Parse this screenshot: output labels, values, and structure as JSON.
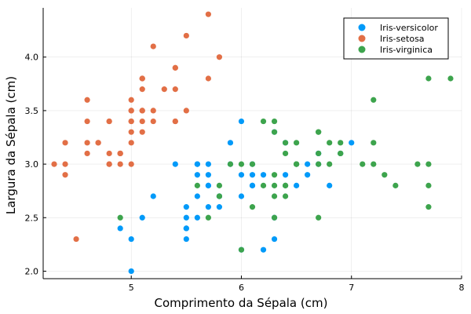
{
  "chart_data": {
    "type": "scatter",
    "xlabel": "Comprimento da Sépala (cm)",
    "ylabel": "Largura da Sépala (cm)",
    "xlim": [
      4.2,
      8.0
    ],
    "ylim": [
      1.93,
      4.46
    ],
    "xticks": [
      5,
      6,
      7,
      8
    ],
    "yticks": [
      2.0,
      2.5,
      3.0,
      3.5,
      4.0
    ],
    "xtick_labels": [
      "5",
      "6",
      "7",
      "8"
    ],
    "ytick_labels": [
      "2.0",
      "2.5",
      "3.0",
      "3.5",
      "4.0"
    ],
    "grid": true,
    "legend_position": "top-right",
    "series": [
      {
        "name": "Iris-versicolor",
        "color": "#009af9",
        "points": [
          [
            7.0,
            3.2
          ],
          [
            6.4,
            3.2
          ],
          [
            6.9,
            3.1
          ],
          [
            5.5,
            2.3
          ],
          [
            6.5,
            2.8
          ],
          [
            5.7,
            2.8
          ],
          [
            6.3,
            3.3
          ],
          [
            4.9,
            2.4
          ],
          [
            6.6,
            2.9
          ],
          [
            5.2,
            2.7
          ],
          [
            5.0,
            2.0
          ],
          [
            5.9,
            3.0
          ],
          [
            6.0,
            2.2
          ],
          [
            6.1,
            2.9
          ],
          [
            5.6,
            2.9
          ],
          [
            6.7,
            3.1
          ],
          [
            5.6,
            3.0
          ],
          [
            5.8,
            2.7
          ],
          [
            6.2,
            2.2
          ],
          [
            5.6,
            2.5
          ],
          [
            5.9,
            3.2
          ],
          [
            6.1,
            2.8
          ],
          [
            6.3,
            2.5
          ],
          [
            6.1,
            2.8
          ],
          [
            6.4,
            2.9
          ],
          [
            6.6,
            3.0
          ],
          [
            6.8,
            2.8
          ],
          [
            6.7,
            3.0
          ],
          [
            6.0,
            2.9
          ],
          [
            5.7,
            2.6
          ],
          [
            5.5,
            2.4
          ],
          [
            5.5,
            2.4
          ],
          [
            5.8,
            2.7
          ],
          [
            6.0,
            2.7
          ],
          [
            5.4,
            3.0
          ],
          [
            6.0,
            3.4
          ],
          [
            6.7,
            3.1
          ],
          [
            6.3,
            2.3
          ],
          [
            5.6,
            3.0
          ],
          [
            5.5,
            2.5
          ],
          [
            5.5,
            2.6
          ],
          [
            6.1,
            3.0
          ],
          [
            5.8,
            2.6
          ],
          [
            5.0,
            2.3
          ],
          [
            5.6,
            2.7
          ],
          [
            5.7,
            3.0
          ],
          [
            5.7,
            2.9
          ],
          [
            6.2,
            2.9
          ],
          [
            5.1,
            2.5
          ],
          [
            5.7,
            2.8
          ]
        ]
      },
      {
        "name": "Iris-setosa",
        "color": "#e26f46",
        "points": [
          [
            5.1,
            3.5
          ],
          [
            4.9,
            3.0
          ],
          [
            4.7,
            3.2
          ],
          [
            4.6,
            3.1
          ],
          [
            5.0,
            3.6
          ],
          [
            5.4,
            3.9
          ],
          [
            4.6,
            3.4
          ],
          [
            5.0,
            3.4
          ],
          [
            4.4,
            2.9
          ],
          [
            4.9,
            3.1
          ],
          [
            5.4,
            3.7
          ],
          [
            4.8,
            3.4
          ],
          [
            4.8,
            3.0
          ],
          [
            4.3,
            3.0
          ],
          [
            5.8,
            4.0
          ],
          [
            5.7,
            4.4
          ],
          [
            5.4,
            3.9
          ],
          [
            5.1,
            3.5
          ],
          [
            5.7,
            3.8
          ],
          [
            5.1,
            3.8
          ],
          [
            5.4,
            3.4
          ],
          [
            5.1,
            3.7
          ],
          [
            4.6,
            3.6
          ],
          [
            5.1,
            3.3
          ],
          [
            4.8,
            3.4
          ],
          [
            5.0,
            3.0
          ],
          [
            5.0,
            3.4
          ],
          [
            5.2,
            3.5
          ],
          [
            5.2,
            3.4
          ],
          [
            4.7,
            3.2
          ],
          [
            4.8,
            3.1
          ],
          [
            5.4,
            3.4
          ],
          [
            5.2,
            4.1
          ],
          [
            5.5,
            4.2
          ],
          [
            4.9,
            3.1
          ],
          [
            5.0,
            3.2
          ],
          [
            5.5,
            3.5
          ],
          [
            4.9,
            3.1
          ],
          [
            4.4,
            3.0
          ],
          [
            5.1,
            3.4
          ],
          [
            5.0,
            3.5
          ],
          [
            4.5,
            2.3
          ],
          [
            4.4,
            3.2
          ],
          [
            5.0,
            3.5
          ],
          [
            5.1,
            3.8
          ],
          [
            4.8,
            3.0
          ],
          [
            5.1,
            3.8
          ],
          [
            4.6,
            3.2
          ],
          [
            5.3,
            3.7
          ],
          [
            5.0,
            3.3
          ]
        ]
      },
      {
        "name": "Iris-virginica",
        "color": "#3da44d",
        "points": [
          [
            6.3,
            3.3
          ],
          [
            5.8,
            2.7
          ],
          [
            7.1,
            3.0
          ],
          [
            6.3,
            2.9
          ],
          [
            6.5,
            3.0
          ],
          [
            7.6,
            3.0
          ],
          [
            4.9,
            2.5
          ],
          [
            7.3,
            2.9
          ],
          [
            6.7,
            2.5
          ],
          [
            7.2,
            3.6
          ],
          [
            6.5,
            3.2
          ],
          [
            6.4,
            2.7
          ],
          [
            6.8,
            3.0
          ],
          [
            5.7,
            2.5
          ],
          [
            5.8,
            2.8
          ],
          [
            6.4,
            3.2
          ],
          [
            6.5,
            3.0
          ],
          [
            7.7,
            3.8
          ],
          [
            7.7,
            2.6
          ],
          [
            6.0,
            2.2
          ],
          [
            6.9,
            3.2
          ],
          [
            5.6,
            2.8
          ],
          [
            7.7,
            2.8
          ],
          [
            6.3,
            2.7
          ],
          [
            6.7,
            3.3
          ],
          [
            7.2,
            3.2
          ],
          [
            6.2,
            2.8
          ],
          [
            6.1,
            3.0
          ],
          [
            6.4,
            2.8
          ],
          [
            7.2,
            3.0
          ],
          [
            7.4,
            2.8
          ],
          [
            7.9,
            3.8
          ],
          [
            6.4,
            2.8
          ],
          [
            6.3,
            2.8
          ],
          [
            6.1,
            2.6
          ],
          [
            7.7,
            3.0
          ],
          [
            6.3,
            3.4
          ],
          [
            6.4,
            3.1
          ],
          [
            6.0,
            3.0
          ],
          [
            6.9,
            3.1
          ],
          [
            6.7,
            3.1
          ],
          [
            6.9,
            3.1
          ],
          [
            5.8,
            2.7
          ],
          [
            6.8,
            3.2
          ],
          [
            6.7,
            3.3
          ],
          [
            6.7,
            3.0
          ],
          [
            6.3,
            2.5
          ],
          [
            6.5,
            3.0
          ],
          [
            6.2,
            3.4
          ],
          [
            5.9,
            3.0
          ]
        ]
      }
    ]
  }
}
